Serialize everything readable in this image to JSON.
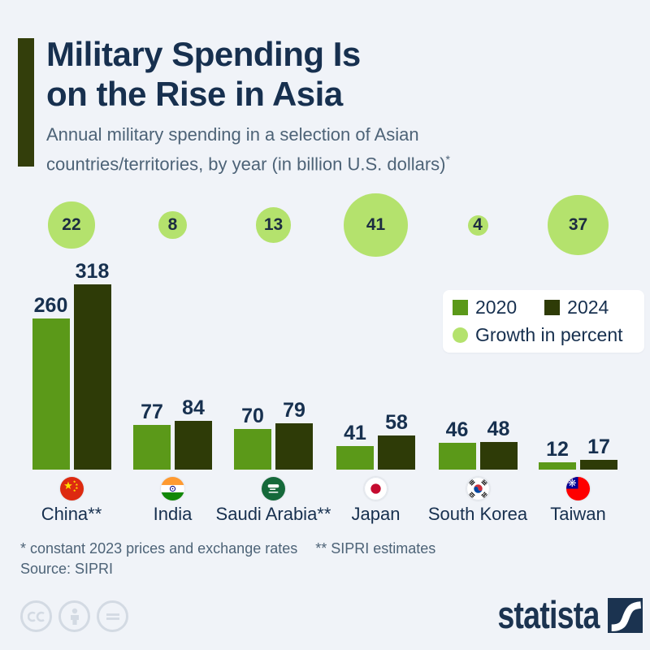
{
  "header": {
    "title_line1": "Military Spending Is",
    "title_line2": "on the Rise in Asia",
    "subtitle_line1": "Annual military spending in a selection of Asian",
    "subtitle_line2": "countries/territories, by year (in billion U.S. dollars)",
    "subtitle_footnote_marker": "*"
  },
  "legend": {
    "series": [
      {
        "label": "2020",
        "color": "#5b9919"
      },
      {
        "label": "2024",
        "color": "#2e3b07"
      }
    ],
    "growth_label": "Growth in percent",
    "growth_color": "#b4e26d"
  },
  "chart_data": {
    "type": "bar",
    "title": "Military Spending Is on the Rise in Asia",
    "subtitle": "Annual military spending in a selection of Asian countries/territories, by year (in billion U.S. dollars)",
    "unit": "billion U.S. dollars",
    "categories": [
      "China**",
      "India",
      "Saudi Arabia**",
      "Japan",
      "South Korea",
      "Taiwan"
    ],
    "series": [
      {
        "name": "2020",
        "values": [
          260,
          77,
          70,
          41,
          46,
          12
        ]
      },
      {
        "name": "2024",
        "values": [
          318,
          84,
          79,
          58,
          48,
          17
        ]
      }
    ],
    "growth_percent": [
      22,
      8,
      13,
      41,
      4,
      37
    ],
    "colors": {
      "s2020": "#5b9919",
      "s2024": "#2e3b07",
      "growth_bubble": "#b4e26d"
    },
    "legend_position": "right",
    "grid": false
  },
  "footer": {
    "footnote_1": "* constant 2023 prices and exchange rates",
    "footnote_2": "** SIPRI estimates",
    "source": "Source: SIPRI",
    "cc_label": "cc",
    "brand": "statista"
  }
}
